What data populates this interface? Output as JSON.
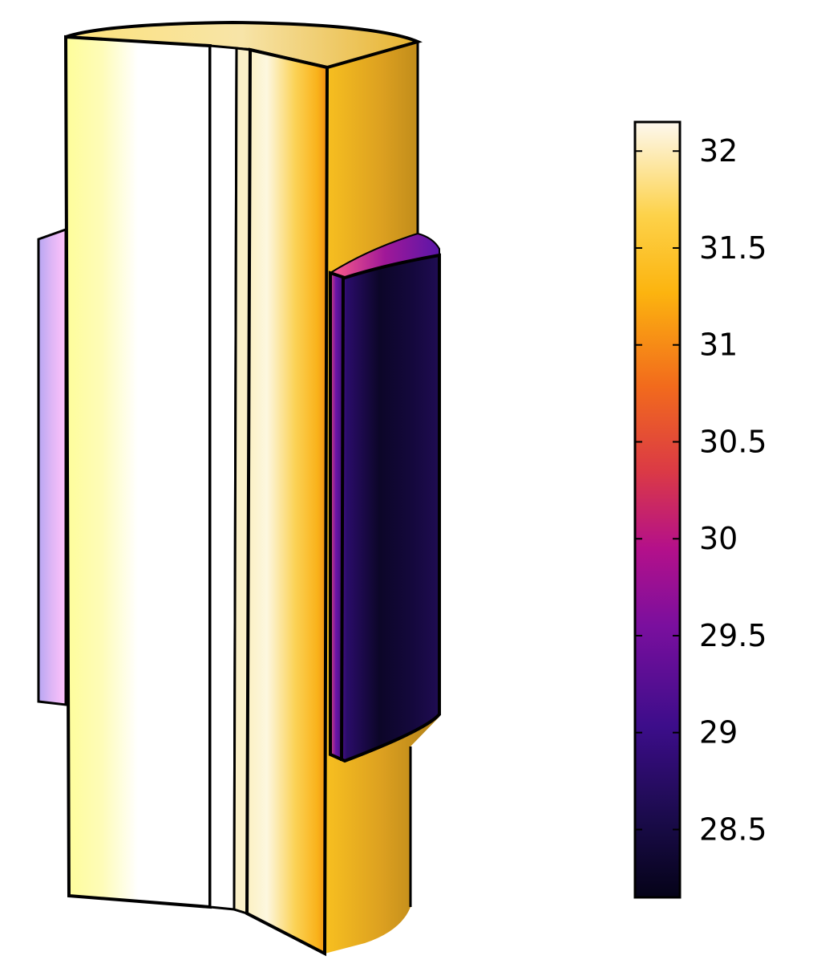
{
  "colorbar": {
    "min": 28.15,
    "max": 32.15,
    "ticks": [
      {
        "value": 32,
        "label": "32"
      },
      {
        "value": 31.5,
        "label": "31.5"
      },
      {
        "value": 31,
        "label": "31"
      },
      {
        "value": 30.5,
        "label": "30.5"
      },
      {
        "value": 30,
        "label": "30"
      },
      {
        "value": 29.5,
        "label": "29.5"
      },
      {
        "value": 29,
        "label": "29"
      },
      {
        "value": 28.5,
        "label": "28.5"
      }
    ],
    "colormap": "inferno-like",
    "colors": [
      "#0a0620",
      "#2a0c6e",
      "#5b12a0",
      "#a0128f",
      "#d63a45",
      "#f07020",
      "#fbbf12",
      "#ffe060",
      "#fdf5e6"
    ]
  }
}
